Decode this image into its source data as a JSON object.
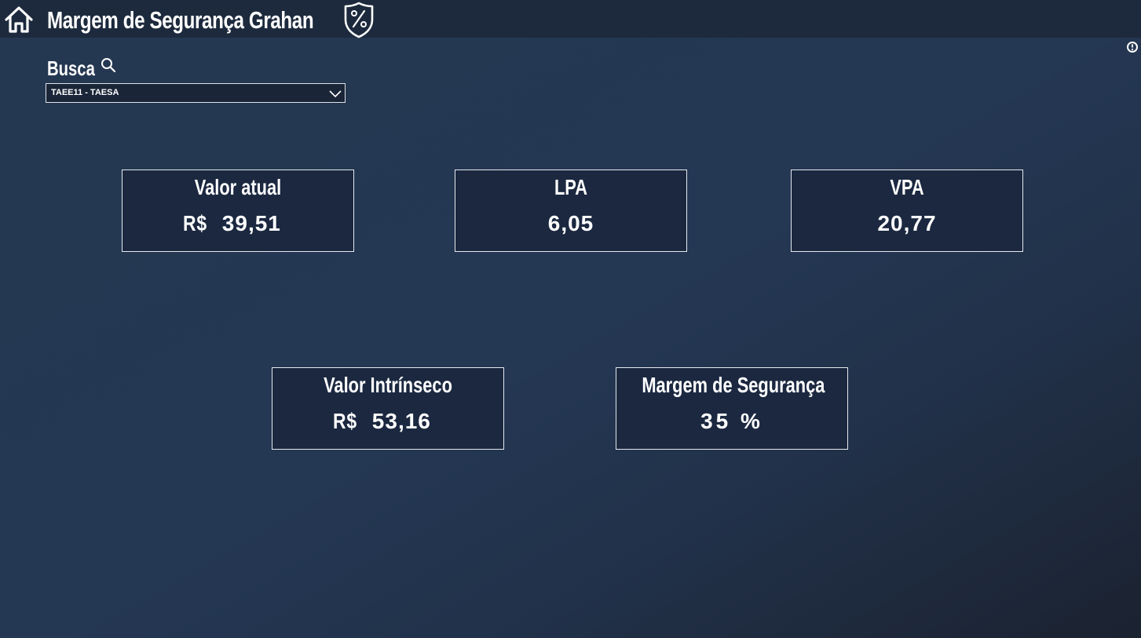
{
  "header": {
    "title": "Margem de Segurança Grahan",
    "home_icon": "home-icon",
    "badge_icon": "shield-percent-icon"
  },
  "info_icon": "info-icon",
  "search": {
    "label": "Busca",
    "icon": "search-icon",
    "selected": "TAEE11 - TAESA"
  },
  "cards": {
    "valor_atual": {
      "label": "Valor atual",
      "prefix": "R$",
      "value": "39,51"
    },
    "lpa": {
      "label": "LPA",
      "value": "6,05"
    },
    "vpa": {
      "label": "VPA",
      "value": "20,77"
    },
    "valor_intrinseco": {
      "label": "Valor Intrínseco",
      "prefix": "R$",
      "value": "53,16"
    },
    "margem": {
      "label": "Margem de Segurança",
      "value": "35 %"
    }
  },
  "colors": {
    "background": "#243753",
    "topbar": "#1d2a3d",
    "card": "#1b2840",
    "border": "#e6e9ee",
    "text": "#ffffff"
  }
}
